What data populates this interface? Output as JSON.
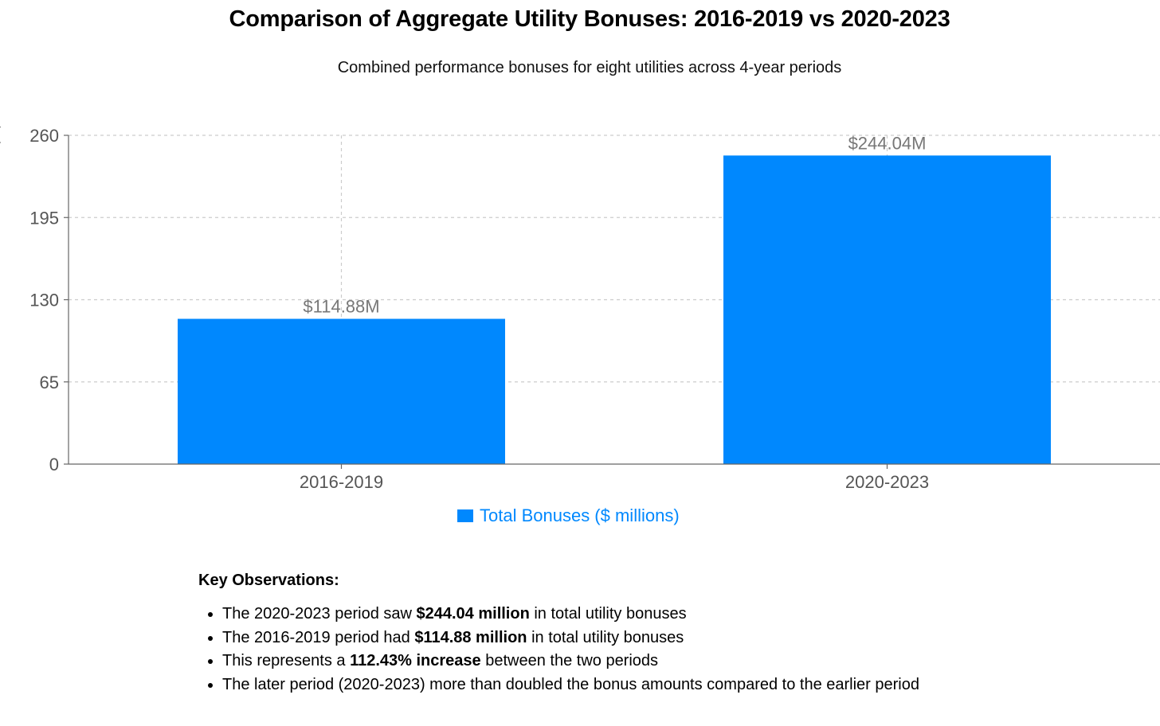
{
  "chart_data": {
    "type": "bar",
    "title": "Comparison of Aggregate Utility Bonuses: 2016-2019 vs 2020-2023",
    "subtitle": "Combined performance bonuses for eight utilities across 4-year periods",
    "categories": [
      "2016-2019",
      "2020-2023"
    ],
    "series": [
      {
        "name": "Total Bonuses ($ millions)",
        "values": [
          114.88,
          244.04
        ],
        "data_labels": [
          "$114.88M",
          "$244.04M"
        ],
        "color": "#0088fe"
      }
    ],
    "ylim": [
      0,
      260
    ],
    "yticks": [
      "0",
      "65",
      "130",
      "195",
      "260"
    ],
    "ylabel_fragment": "(",
    "grid": true,
    "legend_position": "bottom"
  },
  "observations": {
    "heading": "Key Observations:",
    "items": [
      {
        "before": "The 2020-2023 period saw ",
        "bold": "$244.04 million",
        "after": " in total utility bonuses"
      },
      {
        "before": "The 2016-2019 period had ",
        "bold": "$114.88 million",
        "after": " in total utility bonuses"
      },
      {
        "before": "This represents a ",
        "bold": "112.43% increase",
        "after": " between the two periods"
      },
      {
        "before": "The later period (2020-2023) more than doubled the bonus amounts compared to the earlier period",
        "bold": "",
        "after": ""
      }
    ]
  }
}
